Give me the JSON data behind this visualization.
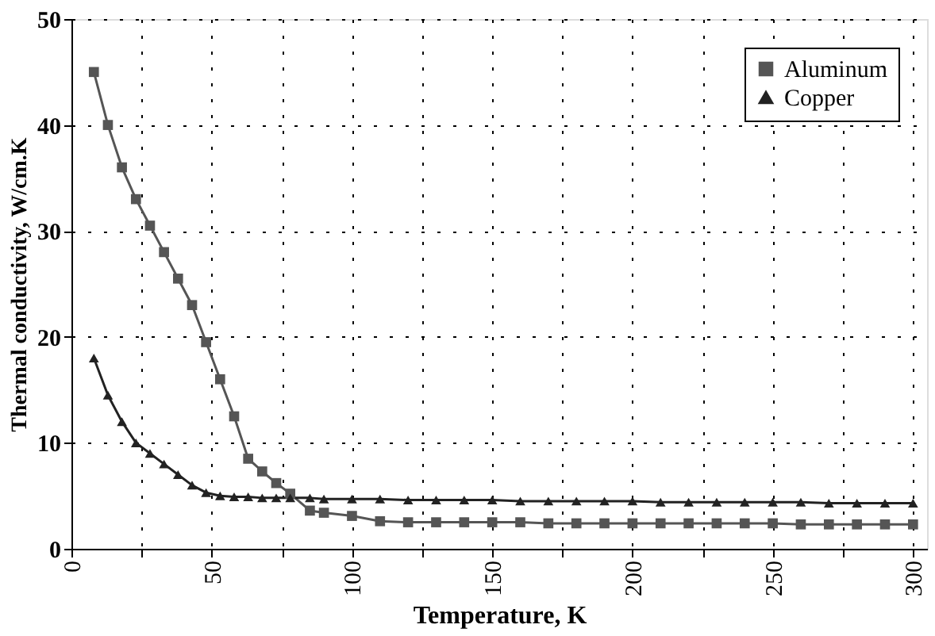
{
  "chart_data": {
    "type": "line",
    "xlabel": "Temperature, K",
    "ylabel": "Thermal conductivity, W/cm.K",
    "xlim": [
      0,
      305
    ],
    "ylim": [
      0,
      50
    ],
    "xticks": [
      0,
      {
        "value": 25,
        "label": null
      },
      50,
      {
        "value": 75,
        "label": null
      },
      100,
      {
        "value": 125,
        "label": null
      },
      150,
      {
        "value": 175,
        "label": null
      },
      200,
      {
        "value": 225,
        "label": null
      },
      250,
      {
        "value": 275,
        "label": null
      },
      300
    ],
    "yticks": [
      0,
      10,
      20,
      30,
      40,
      50
    ],
    "grid": true,
    "line_style": "solid",
    "legend": "top right",
    "series": [
      {
        "name": "Aluminum",
        "color": "#555555",
        "marker": "square",
        "x": [
          8,
          13,
          18,
          23,
          28,
          33,
          38,
          43,
          48,
          53,
          58,
          63,
          68,
          73,
          78,
          85,
          90,
          100,
          110,
          120,
          130,
          140,
          150,
          160,
          170,
          180,
          190,
          200,
          210,
          220,
          230,
          240,
          250,
          260,
          270,
          280,
          290,
          300
        ],
        "values": [
          45,
          40,
          36,
          33,
          30.5,
          28,
          25.5,
          23,
          19.5,
          16,
          12.5,
          8.5,
          7.3,
          6.2,
          5.2,
          3.6,
          3.4,
          3.1,
          2.6,
          2.5,
          2.5,
          2.5,
          2.5,
          2.5,
          2.4,
          2.4,
          2.4,
          2.4,
          2.4,
          2.4,
          2.4,
          2.4,
          2.4,
          2.3,
          2.3,
          2.3,
          2.3,
          2.3
        ]
      },
      {
        "name": "Copper",
        "color": "#222222",
        "marker": "triangle",
        "x": [
          8,
          13,
          18,
          23,
          28,
          33,
          38,
          43,
          48,
          53,
          58,
          63,
          68,
          73,
          78,
          85,
          90,
          100,
          110,
          120,
          130,
          140,
          150,
          160,
          170,
          180,
          190,
          200,
          210,
          220,
          230,
          240,
          250,
          260,
          270,
          280,
          290,
          300
        ],
        "values": [
          18,
          14.5,
          12,
          10,
          9,
          8,
          7,
          6,
          5.3,
          5,
          4.9,
          4.9,
          4.8,
          4.8,
          4.8,
          4.8,
          4.7,
          4.7,
          4.7,
          4.6,
          4.6,
          4.6,
          4.6,
          4.5,
          4.5,
          4.5,
          4.5,
          4.5,
          4.4,
          4.4,
          4.4,
          4.4,
          4.4,
          4.4,
          4.3,
          4.3,
          4.3,
          4.3
        ]
      }
    ]
  }
}
